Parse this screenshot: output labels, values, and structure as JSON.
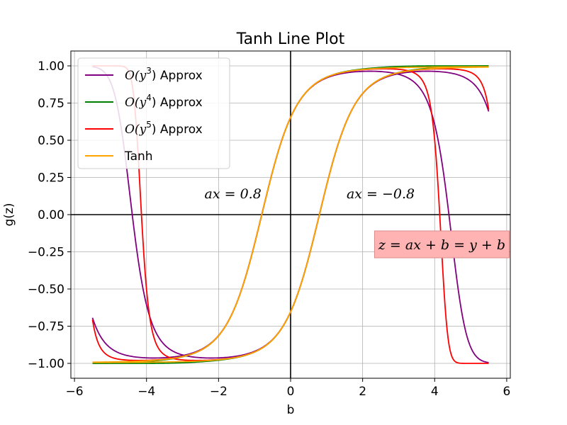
{
  "chart_data": {
    "type": "line",
    "title": "Tanh Line Plot",
    "xlabel": "b",
    "ylabel": "g(z)",
    "xlim": [
      -6.1,
      6.1
    ],
    "ylim": [
      -1.1,
      1.1
    ],
    "x_ticks": [
      -6,
      -4,
      -2,
      0,
      2,
      4,
      6
    ],
    "y_ticks": [
      -1.0,
      -0.75,
      -0.5,
      -0.25,
      0.0,
      0.25,
      0.5,
      0.75,
      1.0
    ],
    "x_tick_labels": [
      "−6",
      "−4",
      "−2",
      "0",
      "2",
      "4",
      "6"
    ],
    "y_tick_labels": [
      "−1.00",
      "−0.75",
      "−0.50",
      "−0.25",
      "0.00",
      "0.25",
      "0.50",
      "0.75",
      "1.00"
    ],
    "grid": true,
    "legend_position": "top-left",
    "x_range": [
      -5.5,
      5.5
    ],
    "ax_values": [
      0.8,
      -0.8
    ],
    "series": [
      {
        "name": "O(y3) Approx",
        "label_base": "O(y",
        "label_exp": "3",
        "label_tail": ") Approx",
        "color": "#800080",
        "order": 3
      },
      {
        "name": "O(y4) Approx",
        "label_base": "O(y",
        "label_exp": "4",
        "label_tail": ") Approx",
        "color": "#008000",
        "order": 4
      },
      {
        "name": "O(y5) Approx",
        "label_base": "O(y",
        "label_exp": "5",
        "label_tail": ") Approx",
        "color": "#ff0000",
        "order": 5
      },
      {
        "name": "Tanh",
        "label_base": "Tanh",
        "label_exp": "",
        "label_tail": "",
        "color": "#ffa500",
        "order": 0
      }
    ],
    "annotations": [
      {
        "text": "ax = 0.8",
        "x": -1.6,
        "y": 0.1
      },
      {
        "text": "ax = −0.8",
        "x": 2.5,
        "y": 0.1
      }
    ],
    "boxed_annotation": {
      "text": "z = ax + b = y + b",
      "x": 4.2,
      "y": -0.2,
      "facecolor": "#ffb3b3",
      "edgecolor": "#d98c8c"
    }
  }
}
